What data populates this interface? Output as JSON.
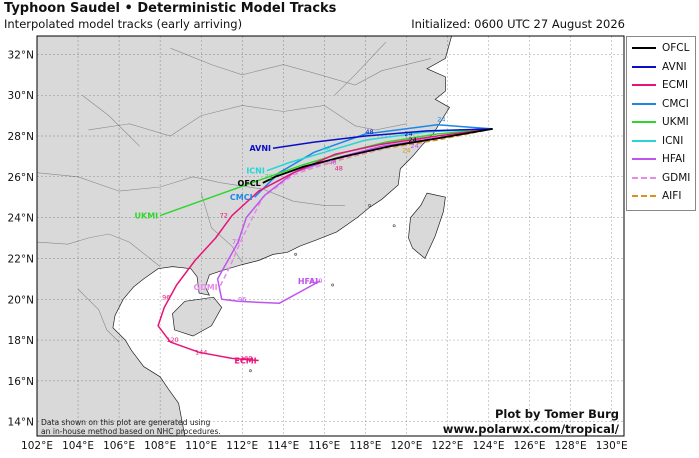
{
  "header": {
    "title": "Typhoon Saudel • Deterministic Model Tracks",
    "subtitle": "Interpolated model tracks (early arriving)",
    "initialized": "Initialized: 0600 UTC 27 August 2026"
  },
  "axes": {
    "lon_ticks": [
      "102°E",
      "104°E",
      "106°E",
      "108°E",
      "110°E",
      "112°E",
      "114°E",
      "116°E",
      "118°E",
      "120°E",
      "122°E",
      "124°E",
      "126°E",
      "128°E",
      "130°E"
    ],
    "lat_ticks": [
      "32°N",
      "30°N",
      "28°N",
      "26°N",
      "24°N",
      "22°N",
      "20°N",
      "18°N",
      "16°N",
      "14°N"
    ]
  },
  "colors": {
    "land": "#d9d9d9",
    "sea": "#ffffff",
    "border": "#8a8a8a",
    "coast": "#222222"
  },
  "legend": [
    {
      "label": "OFCL",
      "color": "#000000",
      "style": "solid"
    },
    {
      "label": "AVNI",
      "color": "#0b0fc4",
      "style": "solid"
    },
    {
      "label": "ECMI",
      "color": "#e8147a",
      "style": "solid"
    },
    {
      "label": "CMCI",
      "color": "#1e87e6",
      "style": "solid"
    },
    {
      "label": "UKMI",
      "color": "#2fd62f",
      "style": "solid"
    },
    {
      "label": "ICNI",
      "color": "#24d6d6",
      "style": "solid"
    },
    {
      "label": "HFAI",
      "color": "#bf55ec",
      "style": "solid"
    },
    {
      "label": "GDMI",
      "color": "#e68be6",
      "style": "dashed"
    },
    {
      "label": "AIFI",
      "color": "#d9941e",
      "style": "dashed"
    }
  ],
  "tracks": [
    {
      "id": "AIFI",
      "color": "#d9941e",
      "dash": true,
      "end_label": "",
      "points": [
        [
          124.2,
          28.35
        ],
        [
          121.5,
          27.8
        ],
        [
          119.0,
          27.4
        ],
        [
          117.0,
          26.9
        ],
        [
          115.0,
          26.3
        ]
      ]
    },
    {
      "id": "GDMI",
      "color": "#e68be6",
      "dash": true,
      "end_label": "GDMI",
      "points": [
        [
          124.2,
          28.35
        ],
        [
          121.0,
          27.9
        ],
        [
          118.5,
          27.3
        ],
        [
          116.5,
          26.8
        ],
        [
          114.5,
          26.1
        ],
        [
          113.0,
          25.0
        ],
        [
          112.0,
          23.0
        ],
        [
          111.4,
          21.6
        ],
        [
          110.9,
          20.6
        ]
      ]
    },
    {
      "id": "HFAI",
      "color": "#bf55ec",
      "dash": false,
      "end_label": "HFAI",
      "points": [
        [
          124.2,
          28.35
        ],
        [
          121.5,
          27.9
        ],
        [
          118.8,
          27.5
        ],
        [
          116.5,
          26.9
        ],
        [
          114.5,
          26.2
        ],
        [
          113.1,
          25.1
        ],
        [
          112.2,
          24.0
        ],
        [
          111.8,
          22.8
        ],
        [
          111.3,
          21.9
        ],
        [
          110.8,
          21.0
        ],
        [
          111.0,
          20.0
        ],
        [
          111.8,
          19.9
        ],
        [
          113.8,
          19.8
        ],
        [
          115.8,
          20.9
        ]
      ]
    },
    {
      "id": "CMCI",
      "color": "#1e87e6",
      "dash": false,
      "end_label": "CMCI",
      "points": [
        [
          124.2,
          28.35
        ],
        [
          121.5,
          28.55
        ],
        [
          118.0,
          28.1
        ],
        [
          115.5,
          27.2
        ],
        [
          113.8,
          26.2
        ],
        [
          112.6,
          25.0
        ]
      ]
    },
    {
      "id": "ICNI",
      "color": "#24d6d6",
      "dash": false,
      "end_label": "ICNI",
      "points": [
        [
          124.2,
          28.35
        ],
        [
          121.0,
          28.2
        ],
        [
          118.0,
          27.8
        ],
        [
          116.0,
          27.2
        ],
        [
          114.3,
          26.7
        ],
        [
          113.2,
          26.3
        ]
      ]
    },
    {
      "id": "UKMI",
      "color": "#2fd62f",
      "dash": false,
      "end_label": "UKMI",
      "points": [
        [
          124.2,
          28.35
        ],
        [
          121.5,
          28.1
        ],
        [
          119.0,
          27.7
        ],
        [
          117.0,
          27.2
        ],
        [
          115.0,
          26.6
        ],
        [
          113.0,
          25.9
        ],
        [
          110.5,
          25.0
        ],
        [
          108.0,
          24.1
        ]
      ]
    },
    {
      "id": "ECMI",
      "color": "#e8147a",
      "dash": false,
      "end_label": "ECMI",
      "points": [
        [
          124.2,
          28.35
        ],
        [
          121.5,
          28.0
        ],
        [
          118.8,
          27.6
        ],
        [
          116.5,
          27.1
        ],
        [
          114.5,
          26.2
        ],
        [
          112.8,
          25.3
        ],
        [
          111.5,
          24.1
        ],
        [
          110.7,
          23.0
        ],
        [
          109.7,
          21.9
        ],
        [
          108.8,
          20.7
        ],
        [
          108.2,
          19.6
        ],
        [
          107.9,
          18.7
        ],
        [
          108.5,
          17.9
        ],
        [
          109.9,
          17.4
        ],
        [
          111.5,
          17.1
        ],
        [
          112.8,
          17.0
        ]
      ]
    },
    {
      "id": "AVNI",
      "color": "#0b0fc4",
      "dash": false,
      "end_label": "AVNI",
      "points": [
        [
          124.2,
          28.35
        ],
        [
          121.0,
          28.25
        ],
        [
          118.0,
          28.0
        ],
        [
          115.5,
          27.7
        ],
        [
          113.5,
          27.4
        ]
      ]
    },
    {
      "id": "OFCL",
      "color": "#000000",
      "dash": false,
      "end_label": "OFCL",
      "points": [
        [
          124.2,
          28.35
        ],
        [
          121.3,
          27.85
        ],
        [
          119.2,
          27.5
        ],
        [
          117.0,
          27.0
        ],
        [
          115.0,
          26.5
        ],
        [
          113.6,
          26.0
        ],
        [
          113.0,
          25.7
        ]
      ]
    }
  ],
  "hour_labels": [
    {
      "text": "24",
      "color": "#1e87e6",
      "at": [
        121.7,
        28.7
      ]
    },
    {
      "text": "24",
      "color": "#0b0fc4",
      "at": [
        120.1,
        28.0
      ]
    },
    {
      "text": "24",
      "color": "#000000",
      "at": [
        120.3,
        27.7
      ]
    },
    {
      "text": "24",
      "color": "#bf55ec",
      "at": [
        120.4,
        27.4
      ]
    },
    {
      "text": "24",
      "color": "#d9941e",
      "at": [
        120.0,
        27.2
      ]
    },
    {
      "text": "48",
      "color": "#0b0fc4",
      "at": [
        118.2,
        28.1
      ]
    },
    {
      "text": "48",
      "color": "#24d6d6",
      "at": [
        116.1,
        27.3
      ]
    },
    {
      "text": "48",
      "color": "#bf55ec",
      "at": [
        116.4,
        26.6
      ]
    },
    {
      "text": "48",
      "color": "#e8147a",
      "at": [
        116.7,
        26.3
      ]
    },
    {
      "text": "72",
      "color": "#2fd62f",
      "at": [
        113.3,
        25.9
      ]
    },
    {
      "text": "72",
      "color": "#e8147a",
      "at": [
        111.1,
        24.0
      ]
    },
    {
      "text": "72",
      "color": "#bf55ec",
      "at": [
        111.7,
        22.7
      ]
    },
    {
      "text": "96",
      "color": "#e8147a",
      "at": [
        108.3,
        20.0
      ]
    },
    {
      "text": "96",
      "color": "#bf55ec",
      "at": [
        112.0,
        19.9
      ]
    },
    {
      "text": "120",
      "color": "#e8147a",
      "at": [
        108.6,
        17.9
      ]
    },
    {
      "text": "120",
      "color": "#bf55ec",
      "at": [
        115.6,
        20.8
      ]
    },
    {
      "text": "144",
      "color": "#e8147a",
      "at": [
        110.0,
        17.3
      ]
    },
    {
      "text": "168",
      "color": "#e8147a",
      "at": [
        112.2,
        17.0
      ]
    }
  ],
  "note": [
    "Data shown on this plot are generated using",
    "an in-house method based on NHC procedures."
  ],
  "credit": [
    "Plot by Tomer Burg",
    "www.polarwx.com/tropical/"
  ]
}
